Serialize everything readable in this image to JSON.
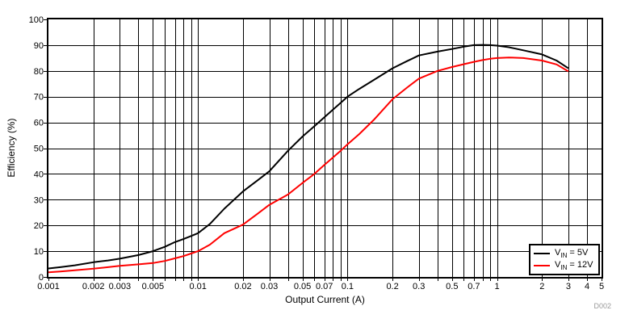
{
  "figure": {
    "id_label": "D002",
    "background": "#ffffff"
  },
  "chart_data": {
    "type": "line",
    "title": "",
    "xlabel": "Output Current (A)",
    "ylabel": "Efficiency (%)",
    "x_scale": "log",
    "xlim": [
      0.001,
      5
    ],
    "ylim": [
      0,
      100
    ],
    "grid": "log minor vertical grid, horizontal grid every 10",
    "legend_position": "inside bottom-right",
    "axis_color": "#000000",
    "grid_color": "#000000",
    "x_ticks": [
      {
        "v": 0.001,
        "label": "0.001"
      },
      {
        "v": 0.002,
        "label": "0.002"
      },
      {
        "v": 0.003,
        "label": "0.003"
      },
      {
        "v": 0.005,
        "label": "0.005"
      },
      {
        "v": 0.01,
        "label": "0.01"
      },
      {
        "v": 0.02,
        "label": "0.02"
      },
      {
        "v": 0.03,
        "label": "0.03"
      },
      {
        "v": 0.05,
        "label": "0.05"
      },
      {
        "v": 0.07,
        "label": "0.07"
      },
      {
        "v": 0.1,
        "label": "0.1"
      },
      {
        "v": 0.2,
        "label": "0.2"
      },
      {
        "v": 0.3,
        "label": "0.3"
      },
      {
        "v": 0.5,
        "label": "0.5"
      },
      {
        "v": 0.7,
        "label": "0.7"
      },
      {
        "v": 1,
        "label": "1"
      },
      {
        "v": 2,
        "label": "2"
      },
      {
        "v": 3,
        "label": "3"
      },
      {
        "v": 4,
        "label": "4"
      },
      {
        "v": 5,
        "label": "5"
      }
    ],
    "y_ticks": [
      0,
      10,
      20,
      30,
      40,
      50,
      60,
      70,
      80,
      90,
      100
    ],
    "series": [
      {
        "name": "VIN = 5V",
        "color": "#000000",
        "label_parts": {
          "prefix": "V",
          "sub": "IN",
          "suffix": " = 5V"
        },
        "points": [
          [
            0.001,
            3.3
          ],
          [
            0.0012,
            3.8
          ],
          [
            0.0015,
            4.5
          ],
          [
            0.002,
            5.7
          ],
          [
            0.0025,
            6.4
          ],
          [
            0.003,
            7.1
          ],
          [
            0.004,
            8.5
          ],
          [
            0.005,
            10
          ],
          [
            0.006,
            11.7
          ],
          [
            0.007,
            13.5
          ],
          [
            0.008,
            14.7
          ],
          [
            0.009,
            15.9
          ],
          [
            0.01,
            17
          ],
          [
            0.012,
            20.5
          ],
          [
            0.015,
            26.5
          ],
          [
            0.02,
            33.2
          ],
          [
            0.025,
            37.5
          ],
          [
            0.03,
            41
          ],
          [
            0.04,
            49
          ],
          [
            0.05,
            54.5
          ],
          [
            0.06,
            58.5
          ],
          [
            0.07,
            62
          ],
          [
            0.08,
            65
          ],
          [
            0.09,
            67.6
          ],
          [
            0.1,
            70
          ],
          [
            0.12,
            73
          ],
          [
            0.15,
            76.5
          ],
          [
            0.2,
            81
          ],
          [
            0.25,
            83.8
          ],
          [
            0.3,
            86
          ],
          [
            0.4,
            87.5
          ],
          [
            0.5,
            88.5
          ],
          [
            0.6,
            89.4
          ],
          [
            0.7,
            90
          ],
          [
            0.8,
            90.1
          ],
          [
            0.9,
            90
          ],
          [
            1,
            89.8
          ],
          [
            1.2,
            89.2
          ],
          [
            1.5,
            88
          ],
          [
            2,
            86.4
          ],
          [
            2.5,
            84
          ],
          [
            3,
            81
          ]
        ]
      },
      {
        "name": "VIN = 12V",
        "color": "#ff0000",
        "label_parts": {
          "prefix": "V",
          "sub": "IN",
          "suffix": " = 12V"
        },
        "points": [
          [
            0.001,
            1.8
          ],
          [
            0.0012,
            2.1
          ],
          [
            0.0015,
            2.6
          ],
          [
            0.002,
            3.2
          ],
          [
            0.0025,
            3.8
          ],
          [
            0.003,
            4.3
          ],
          [
            0.004,
            4.9
          ],
          [
            0.005,
            5.4
          ],
          [
            0.006,
            6.2
          ],
          [
            0.007,
            7.2
          ],
          [
            0.008,
            8.1
          ],
          [
            0.009,
            9.1
          ],
          [
            0.01,
            10
          ],
          [
            0.012,
            12.5
          ],
          [
            0.015,
            17
          ],
          [
            0.02,
            20.3
          ],
          [
            0.025,
            24.5
          ],
          [
            0.03,
            28
          ],
          [
            0.04,
            32
          ],
          [
            0.05,
            36.5
          ],
          [
            0.06,
            40
          ],
          [
            0.07,
            43.5
          ],
          [
            0.08,
            46.4
          ],
          [
            0.09,
            49
          ],
          [
            0.1,
            51.5
          ],
          [
            0.12,
            55.5
          ],
          [
            0.15,
            61
          ],
          [
            0.2,
            69
          ],
          [
            0.25,
            73.5
          ],
          [
            0.3,
            77
          ],
          [
            0.4,
            80
          ],
          [
            0.5,
            81.5
          ],
          [
            0.6,
            82.6
          ],
          [
            0.7,
            83.5
          ],
          [
            0.8,
            84.2
          ],
          [
            0.9,
            84.7
          ],
          [
            1,
            85
          ],
          [
            1.2,
            85.2
          ],
          [
            1.5,
            85
          ],
          [
            2,
            84
          ],
          [
            2.5,
            82.5
          ],
          [
            3,
            79.8
          ]
        ]
      }
    ]
  }
}
